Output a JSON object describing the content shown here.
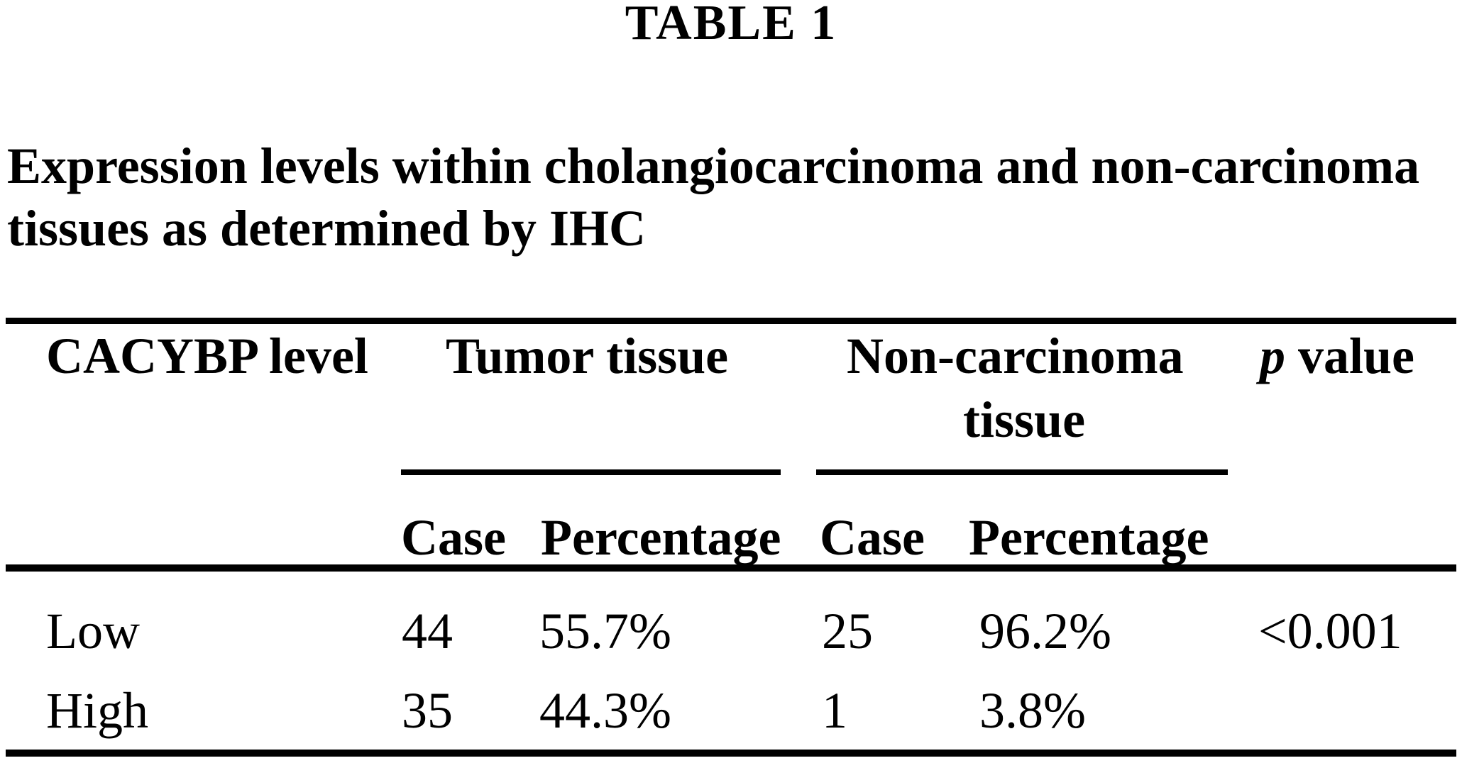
{
  "table_label": "TABLE 1",
  "caption": {
    "line1": "Expression levels within cholangiocarcinoma and non-carcinoma",
    "line2": "tissues as determined by IHC"
  },
  "header": {
    "col1": "CACYBP level",
    "group1": "Tumor tissue",
    "group2_line1": "Non-carcinoma",
    "group2_line2": "tissue",
    "p_italic": "p",
    "p_rest": " value",
    "sub": [
      "Case",
      "Percentage",
      "Case",
      "Percentage"
    ]
  },
  "rows": [
    {
      "level": "Low",
      "tumor_case": "44",
      "tumor_percentage": "55.7%",
      "non_carcinoma_case": "25",
      "non_carcinoma_percentage": "96.2%",
      "p_value": "<0.001"
    },
    {
      "level": "High",
      "tumor_case": "35",
      "tumor_percentage": "44.3%",
      "non_carcinoma_case": "1",
      "non_carcinoma_percentage": "3.8%",
      "p_value": ""
    }
  ],
  "colors": {
    "text": "#000000",
    "background": "#ffffff",
    "rule": "#000000"
  }
}
